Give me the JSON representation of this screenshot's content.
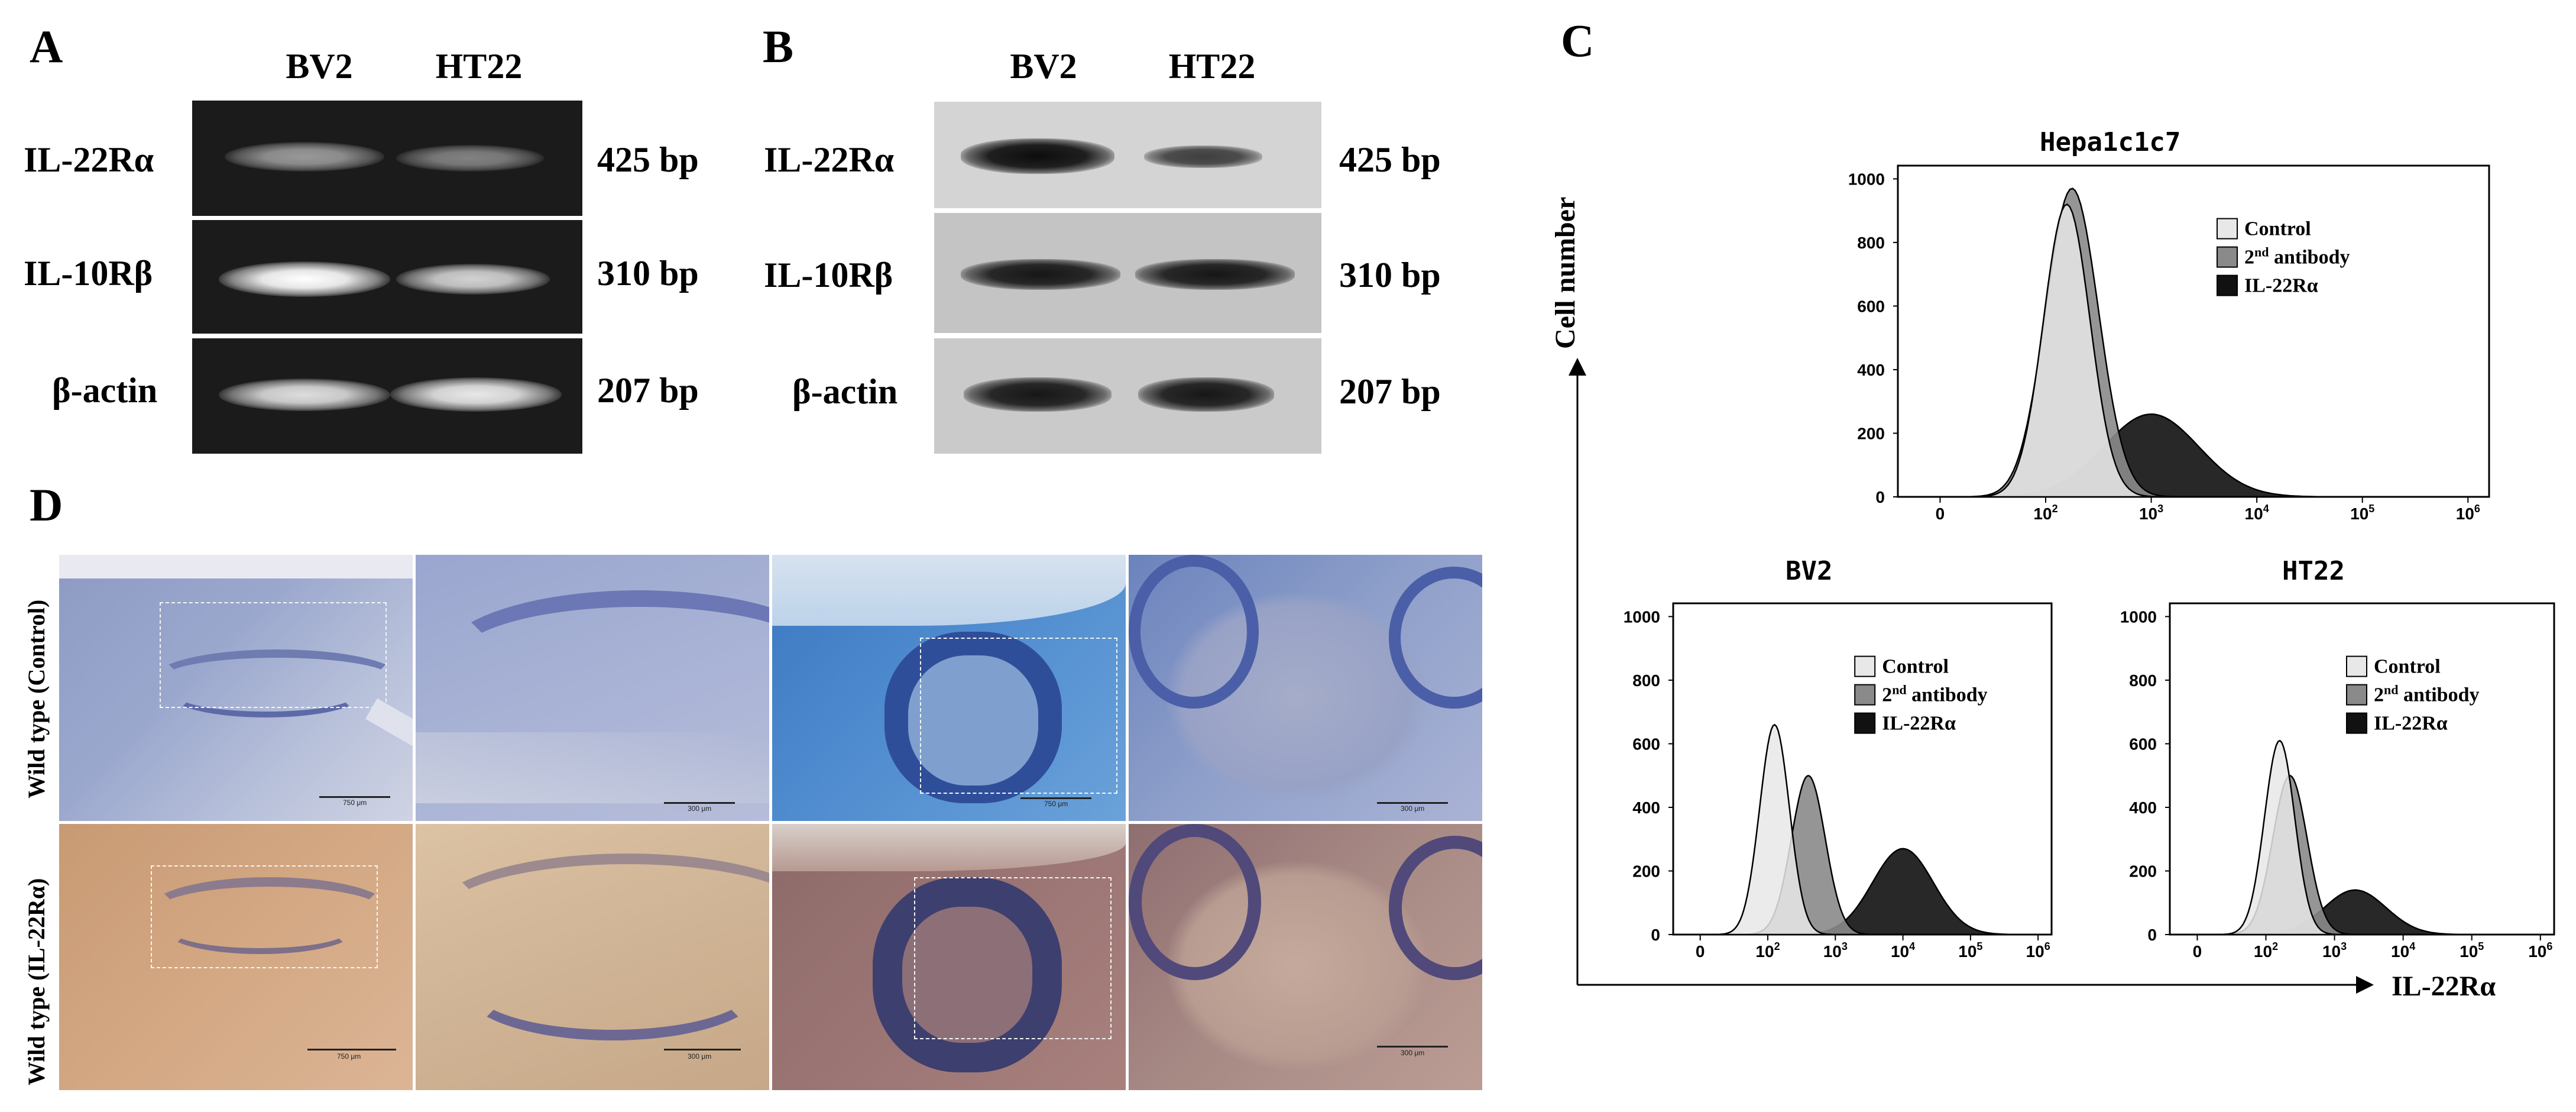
{
  "panelA": {
    "letter": "A",
    "lanes": [
      "BV2",
      "HT22"
    ],
    "rows": [
      {
        "gene": "IL-22Rα",
        "size": "425 bp",
        "intensity": [
          0.55,
          0.45
        ]
      },
      {
        "gene": "IL-10Rβ",
        "size": "310 bp",
        "intensity": [
          1.0,
          0.8
        ]
      },
      {
        "gene": "β-actin",
        "size": "207 bp",
        "intensity": [
          0.85,
          0.9
        ]
      }
    ]
  },
  "panelB": {
    "letter": "B",
    "lanes": [
      "BV2",
      "HT22"
    ],
    "rows": [
      {
        "gene": "IL-22Rα",
        "size": "425 bp",
        "intensity": [
          1.0,
          0.6
        ]
      },
      {
        "gene": "IL-10Rβ",
        "size": "310 bp",
        "intensity": [
          0.95,
          0.95
        ]
      },
      {
        "gene": "β-actin",
        "size": "207 bp",
        "intensity": [
          0.95,
          0.95
        ]
      }
    ]
  },
  "panelC": {
    "letter": "C",
    "y_axis_label": "Cell number",
    "x_axis_label": "IL-22Rα",
    "legend": [
      "Control",
      "2nd antibody",
      "IL-22Rα"
    ],
    "legend_colors": [
      "#e8e8e8",
      "#8a8a8a",
      "#111111"
    ],
    "yticks": [
      "1000",
      "800",
      "600",
      "400",
      "200",
      "0"
    ],
    "xticks": [
      "0",
      "10",
      "10",
      "10",
      "10",
      "10"
    ],
    "xtick_exp": [
      "",
      "2",
      "3",
      "4",
      "5",
      "6"
    ]
  },
  "chart_data": [
    {
      "type": "area",
      "title": "Hepa1c1c7",
      "xscale": "log",
      "ylim": [
        0,
        1000
      ],
      "series": [
        {
          "name": "Control",
          "peak_x": 2.2,
          "peak_y": 920
        },
        {
          "name": "2nd antibody",
          "peak_x": 2.25,
          "peak_y": 970
        },
        {
          "name": "IL-22Rα",
          "peak_x": 3.0,
          "peak_y": 260
        }
      ]
    },
    {
      "type": "area",
      "title": "BV2",
      "xscale": "log",
      "ylim": [
        0,
        1000
      ],
      "series": [
        {
          "name": "Control",
          "peak_x": 2.1,
          "peak_y": 660
        },
        {
          "name": "2nd antibody",
          "peak_x": 2.6,
          "peak_y": 500
        },
        {
          "name": "IL-22Rα",
          "peak_x": 4.0,
          "peak_y": 270
        }
      ]
    },
    {
      "type": "area",
      "title": "HT22",
      "xscale": "log",
      "ylim": [
        0,
        1000
      ],
      "series": [
        {
          "name": "Control",
          "peak_x": 2.2,
          "peak_y": 610
        },
        {
          "name": "2nd antibody",
          "peak_x": 2.35,
          "peak_y": 500
        },
        {
          "name": "IL-22Rα",
          "peak_x": 3.3,
          "peak_y": 140
        }
      ]
    }
  ],
  "panelD": {
    "letter": "D",
    "row_labels": [
      "Wild type (Control)",
      "Wild type (IL-22Rα)"
    ],
    "scale_bars": [
      [
        "750 μm",
        "300 μm",
        "750 μm",
        "300 μm"
      ],
      [
        "750 μm",
        "300 μm",
        "",
        "300 μm"
      ]
    ]
  }
}
